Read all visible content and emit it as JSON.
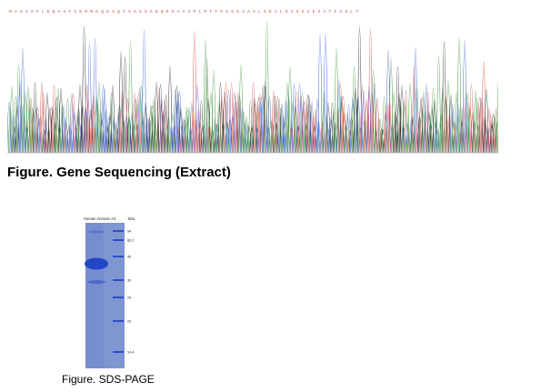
{
  "sequencing_figure": {
    "caption": "Figure. Gene Sequencing (Extract)",
    "top_letters": "MAHVSFLEQAVFIEMMEQEVQTVSSSSNQPGAVSPLPTFPSSSVAALSEALHVSSVESATISSLY",
    "trace_colors": {
      "A": "#3a8f3a",
      "C": "#3a5fd0",
      "G": "#222222",
      "T": "#d04a4a"
    },
    "letter_color": "#c84a4a"
  },
  "sds_page": {
    "lane_label": "Human Annexin A1",
    "kda_label": "kDa",
    "markers": [
      "94",
      "66.2",
      "45",
      "33",
      "26",
      "20",
      "14.4"
    ],
    "gel_color": "#7f96d2",
    "band_color": "#2346c6",
    "caption": "Figure. SDS-PAGE"
  }
}
